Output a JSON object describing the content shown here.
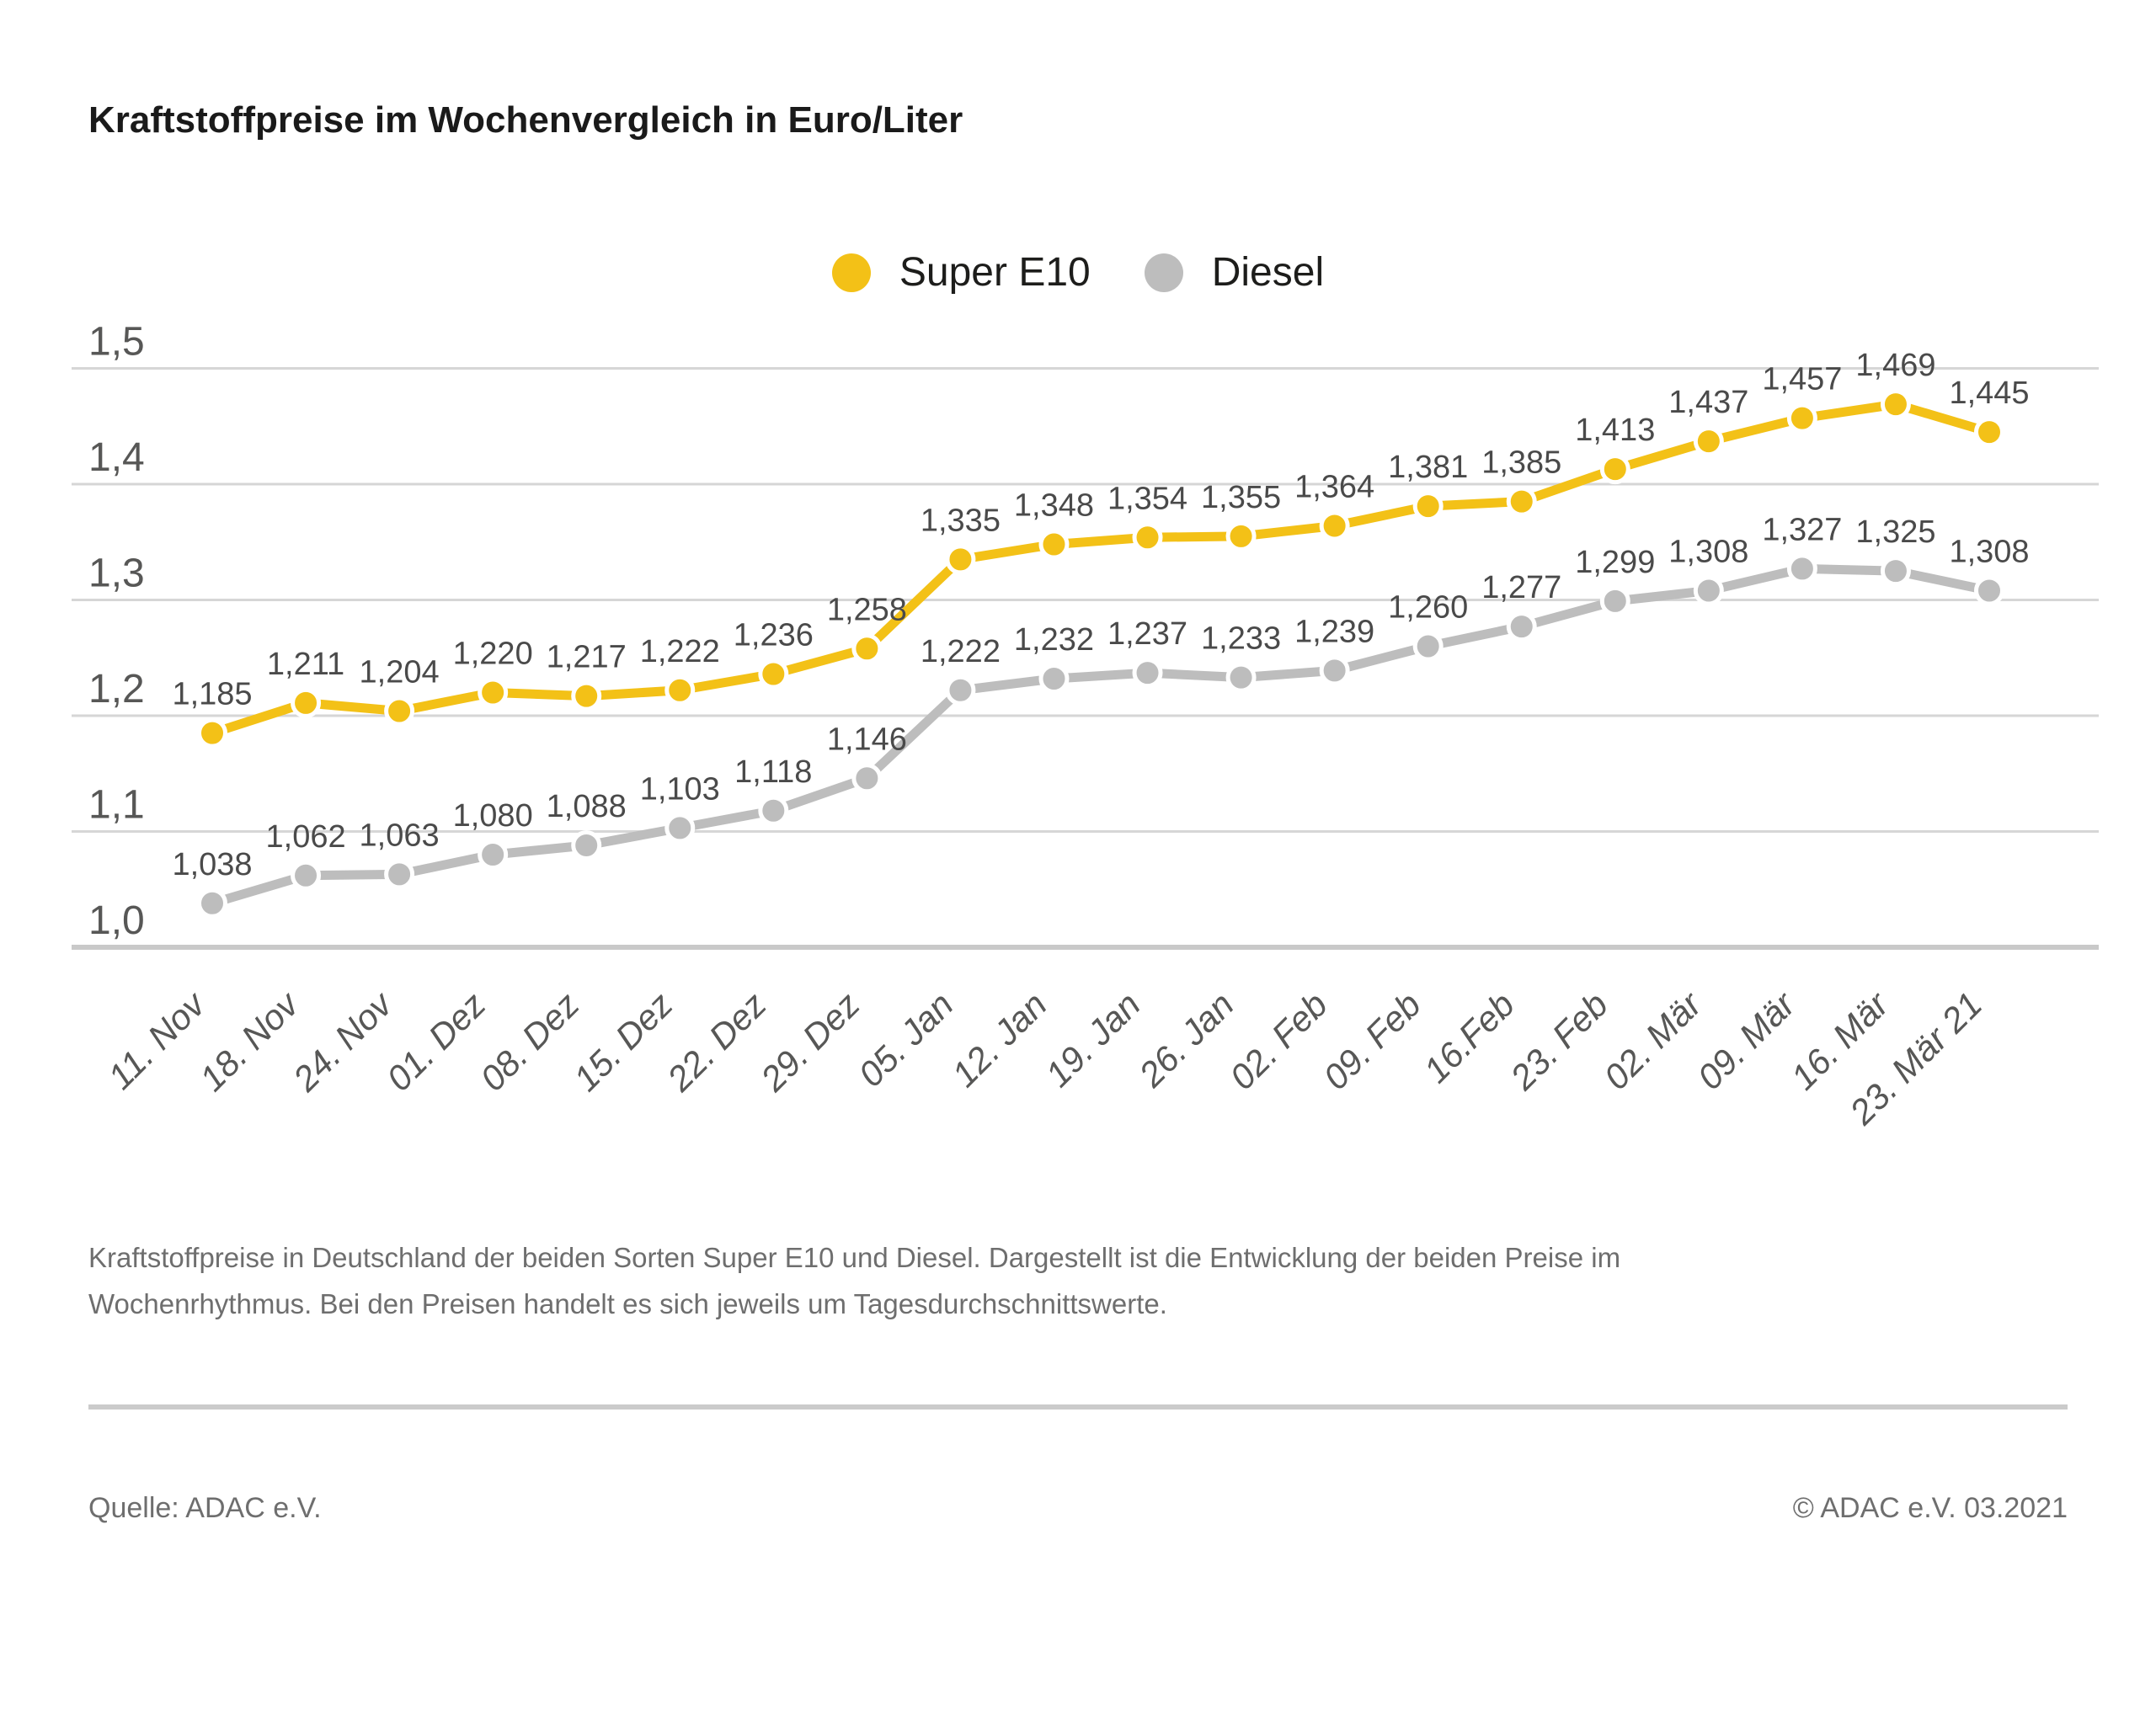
{
  "title": "Kraftstoffpreise im Wochenvergleich in Euro/Liter",
  "legend": {
    "items": [
      {
        "label": "Super E10",
        "color": "#F3C117"
      },
      {
        "label": "Diesel",
        "color": "#BDBDBD"
      }
    ]
  },
  "chart_data": {
    "type": "line",
    "title": "Kraftstoffpreise im Wochenvergleich in Euro/Liter",
    "xlabel": "",
    "ylabel": "Euro/Liter",
    "ylim": [
      1.0,
      1.5
    ],
    "grid": true,
    "legend_position": "top-center",
    "x_labels": [
      "11. Nov",
      "18. Nov",
      "24. Nov",
      "01. Dez",
      "08. Dez",
      "15. Dez",
      "22. Dez",
      "29. Dez",
      "05. Jan",
      "12. Jan",
      "19. Jan",
      "26. Jan",
      "02. Feb",
      "09. Feb",
      "16.Feb",
      "23. Feb",
      "02. Mär",
      "09. Mär",
      "16. Mär",
      "23. Mär 21"
    ],
    "yticks": {
      "values": [
        1.5,
        1.4,
        1.3,
        1.2,
        1.1,
        1.0
      ],
      "labels": [
        "1,5",
        "1,4",
        "1,3",
        "1,2",
        "1,1",
        "1,0"
      ]
    },
    "series": [
      {
        "name": "Super E10",
        "color": "#F3C117",
        "values": [
          1.185,
          1.211,
          1.204,
          1.22,
          1.217,
          1.222,
          1.236,
          1.258,
          1.335,
          1.348,
          1.354,
          1.355,
          1.364,
          1.381,
          1.385,
          1.413,
          1.437,
          1.457,
          1.469,
          1.445
        ],
        "labels": [
          "1,185",
          "1,211",
          "1,204",
          "1,220",
          "1,217",
          "1,222",
          "1,236",
          "1,258",
          "1,335",
          "1,348",
          "1,354",
          "1,355",
          "1,364",
          "1,381",
          "1,385",
          "1,413",
          "1,437",
          "1,457",
          "1,469",
          "1,445"
        ]
      },
      {
        "name": "Diesel",
        "color": "#BDBDBD",
        "values": [
          1.038,
          1.062,
          1.063,
          1.08,
          1.088,
          1.103,
          1.118,
          1.146,
          1.222,
          1.232,
          1.237,
          1.233,
          1.239,
          1.26,
          1.277,
          1.299,
          1.308,
          1.327,
          1.325,
          1.308
        ],
        "labels": [
          "1,038",
          "1,062",
          "1,063",
          "1,080",
          "1,088",
          "1,103",
          "1,118",
          "1,146",
          "1,222",
          "1,232",
          "1,237",
          "1,233",
          "1,239",
          "1,260",
          "1,277",
          "1,299",
          "1,308",
          "1,327",
          "1,325",
          "1,308"
        ]
      }
    ]
  },
  "description": "Kraftstoffpreise in Deutschland der beiden Sorten Super E10 und Diesel. Dargestellt ist die Entwicklung der beiden Preise im\nWochenrhythmus. Bei den Preisen handelt es sich jeweils um Tagesdurchschnittswerte.",
  "footer": {
    "source": "Quelle: ADAC e.V.",
    "copyright": "© ADAC e.V. 03.2021"
  }
}
